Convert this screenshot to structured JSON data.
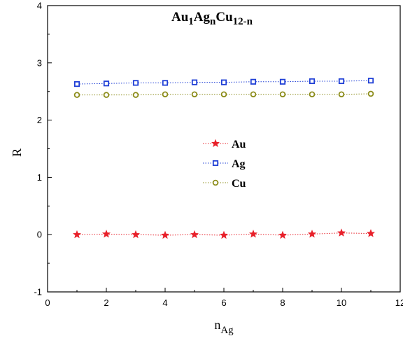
{
  "chart_data": {
    "type": "scatter",
    "title": {
      "base1": "Au",
      "sub1": "1",
      "base2": "Ag",
      "sub2": "n",
      "base3": "Cu",
      "sub3": "12-n"
    },
    "xlabel": {
      "base": "n",
      "sub": "Ag"
    },
    "ylabel": "R",
    "xlim": [
      0,
      12
    ],
    "ylim": [
      -1,
      4
    ],
    "xticks": [
      0,
      2,
      4,
      6,
      8,
      10,
      12
    ],
    "yticks": [
      -1,
      0,
      1,
      2,
      3,
      4
    ],
    "grid": false,
    "legend_position": "center",
    "x": [
      1,
      2,
      3,
      4,
      5,
      6,
      7,
      8,
      9,
      10,
      11
    ],
    "series": [
      {
        "name": "Au",
        "marker": "star",
        "color": "#e8202a",
        "values": [
          0.0,
          0.01,
          0.0,
          -0.01,
          0.0,
          -0.01,
          0.01,
          -0.01,
          0.01,
          0.03,
          0.02
        ]
      },
      {
        "name": "Ag",
        "marker": "square",
        "color": "#1f3fd6",
        "values": [
          2.63,
          2.64,
          2.65,
          2.65,
          2.66,
          2.66,
          2.67,
          2.67,
          2.68,
          2.68,
          2.69
        ]
      },
      {
        "name": "Cu",
        "marker": "circle",
        "color": "#8c8c1a",
        "values": [
          2.44,
          2.44,
          2.44,
          2.45,
          2.45,
          2.45,
          2.45,
          2.45,
          2.45,
          2.45,
          2.46
        ]
      }
    ]
  }
}
